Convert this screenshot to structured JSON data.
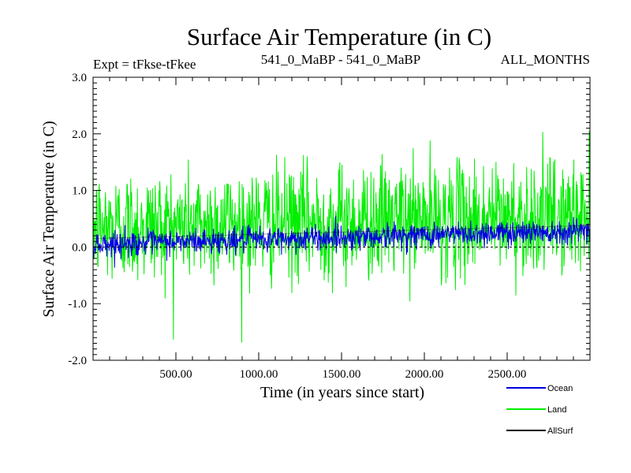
{
  "chart_data": {
    "type": "line",
    "title": "Surface Air Temperature (in C)",
    "subtitle_left": "Expt = tFkse-tFkee",
    "subtitle_center": "541_0_MaBP - 541_0_MaBP",
    "subtitle_right": "ALL_MONTHS",
    "xlabel": "Time (in years since start)",
    "ylabel": "Surface Air Temperature (in C)",
    "xlim": [
      0,
      3000
    ],
    "ylim": [
      -2.0,
      3.0
    ],
    "x_ticks": [
      500,
      1000,
      1500,
      2000,
      2500
    ],
    "x_tick_labels": [
      "500.00",
      "1000.00",
      "1500.00",
      "2000.00",
      "2500.00"
    ],
    "y_ticks": [
      -2.0,
      -1.0,
      0.0,
      1.0,
      2.0,
      3.0
    ],
    "y_tick_labels": [
      "-2.0",
      "-1.0",
      "0.0",
      "1.0",
      "2.0",
      "3.0"
    ],
    "zero_line": 0.0,
    "legend_position": "bottom-right, outside plot",
    "series": [
      {
        "name": "Land",
        "color": "#00ee00",
        "trend": {
          "x": [
            0,
            3000
          ],
          "y": [
            0.35,
            0.55
          ]
        },
        "noise_sd": 0.5,
        "clip": [
          -1.8,
          2.8
        ]
      },
      {
        "name": "Ocean",
        "color": "#0000dd",
        "trend": {
          "x": [
            0,
            3000
          ],
          "y": [
            0.05,
            0.3
          ]
        },
        "noise_sd": 0.11,
        "clip": [
          -0.4,
          0.7
        ]
      },
      {
        "name": "AllSurf",
        "color": "#000000",
        "trend": {
          "x": [
            0,
            3000
          ],
          "y": [
            0.15,
            0.38
          ]
        },
        "noise_sd": 0.0,
        "clip": [
          -2.0,
          3.0
        ]
      }
    ]
  }
}
